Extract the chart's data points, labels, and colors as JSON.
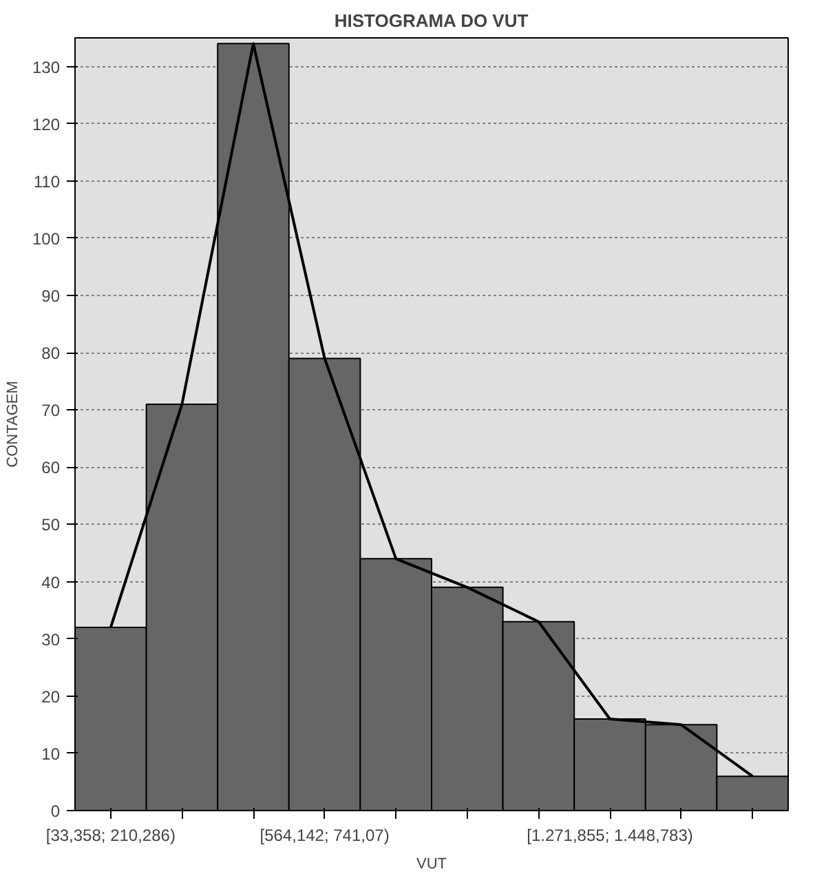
{
  "chart_data": {
    "type": "bar",
    "title": "HISTOGRAMA DO VUT",
    "xlabel": "VUT",
    "ylabel": "CONTAGEM",
    "categories": [
      "[33,358; 210,286)",
      null,
      null,
      "[564,142; 741,07)",
      null,
      null,
      null,
      "[1.271,855; 1.448,783)",
      null,
      null
    ],
    "series": [
      {
        "color": "#666666",
        "values": [
          32,
          71,
          134,
          79,
          44,
          39,
          33,
          16,
          15,
          6
        ]
      },
      {
        "type": "line",
        "color": "#000000",
        "values": [
          32,
          71,
          134,
          79,
          44,
          39,
          33,
          16,
          15,
          6
        ]
      }
    ],
    "ylim": [
      0,
      135
    ],
    "yticks": [
      0,
      10,
      20,
      30,
      40,
      50,
      60,
      70,
      80,
      90,
      100,
      110,
      120,
      130
    ],
    "grid": "y"
  }
}
